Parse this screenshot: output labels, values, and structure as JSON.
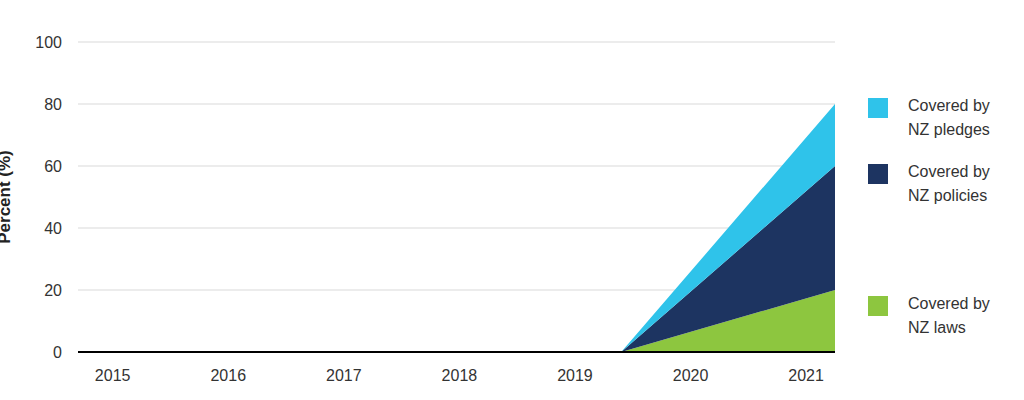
{
  "chart_data": {
    "type": "area",
    "stacked": true,
    "grid": true,
    "y_label": "Percent (%)",
    "x": [
      2014.7,
      2019.4,
      2021.25
    ],
    "xlim": [
      2014.7,
      2021.25
    ],
    "xticks": [
      2015,
      2016,
      2017,
      2018,
      2019,
      2020,
      2021
    ],
    "ylim": [
      0,
      100
    ],
    "yticks": [
      0,
      20,
      40,
      60,
      80,
      100
    ],
    "series": [
      {
        "name": "Covered by NZ laws",
        "color": "#8dc63f",
        "values": [
          0,
          0,
          20
        ]
      },
      {
        "name": "Covered by NZ policies",
        "color": "#1d3461",
        "values": [
          0,
          0,
          40
        ]
      },
      {
        "name": "Covered by NZ pledges",
        "color": "#2fc3ea",
        "values": [
          0,
          0,
          20
        ]
      }
    ]
  }
}
